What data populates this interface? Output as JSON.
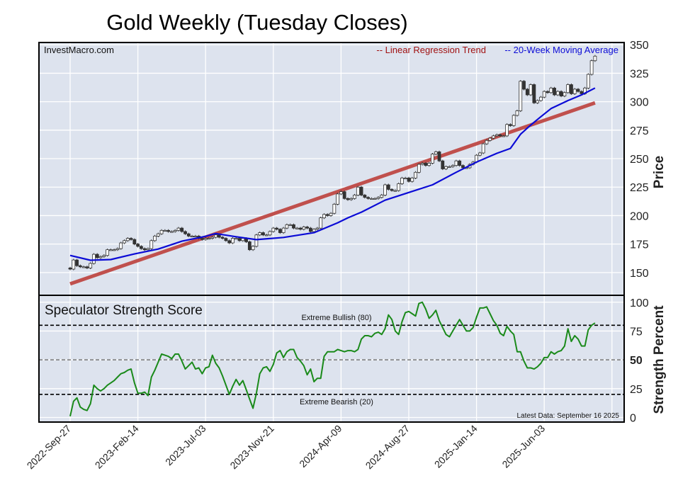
{
  "chart_data": [
    {
      "type": "candlestick+line",
      "title": "Gold Weekly (Tuesday Closes)",
      "source_label": "InvestMacro.com",
      "ylabel": "Price",
      "ylim": [
        130,
        352
      ],
      "yticks": [
        150,
        175,
        200,
        225,
        250,
        275,
        300,
        325,
        350
      ],
      "grid": true,
      "legend_placement": "top-right",
      "first_week": "2022-09-27",
      "xtick_labels": [
        "2022-Sep-27",
        "2023-Feb-14",
        "2023-Jul-03",
        "2023-Nov-21",
        "2024-Apr-09",
        "2024-Aug-27",
        "2025-Jan-14",
        "2025-Jun-03"
      ],
      "closes": [
        153,
        161,
        156,
        155,
        155,
        154,
        158,
        166,
        163,
        164,
        165,
        170,
        170,
        170,
        171,
        176,
        178,
        180,
        179,
        175,
        173,
        171,
        170,
        171,
        178,
        182,
        184,
        187,
        187,
        186,
        186,
        187,
        189,
        186,
        184,
        182,
        182,
        182,
        180,
        179,
        180,
        180,
        181,
        183,
        181,
        180,
        178,
        176,
        180,
        180,
        178,
        180,
        177,
        170,
        173,
        183,
        185,
        183,
        183,
        186,
        189,
        188,
        185,
        189,
        192,
        192,
        189,
        189,
        188,
        190,
        189,
        186,
        188,
        189,
        198,
        201,
        200,
        202,
        210,
        219,
        221,
        215,
        214,
        215,
        218,
        225,
        218,
        216,
        215,
        215,
        215,
        216,
        218,
        227,
        223,
        222,
        222,
        228,
        233,
        233,
        230,
        233,
        238,
        245,
        246,
        244,
        246,
        254,
        256,
        248,
        241,
        243,
        243,
        244,
        248,
        244,
        242,
        242,
        245,
        247,
        253,
        255,
        263,
        266,
        268,
        270,
        271,
        270,
        270,
        280,
        279,
        288,
        292,
        318,
        311,
        306,
        315,
        299,
        301,
        304,
        309,
        308,
        312,
        306,
        309,
        305,
        308,
        315,
        307,
        311,
        309,
        307,
        312,
        324,
        336,
        340
      ],
      "moving_average": {
        "name": "-- 20-Week Moving Average",
        "color": "#0b0bd6",
        "points": [
          {
            "date": "2022-09-27",
            "value": 165
          },
          {
            "date": "2022-11-08",
            "value": 160.8
          },
          {
            "date": "2022-12-20",
            "value": 161.4
          },
          {
            "date": "2023-02-07",
            "value": 166.3
          },
          {
            "date": "2023-03-28",
            "value": 170.6
          },
          {
            "date": "2023-05-16",
            "value": 177.5
          },
          {
            "date": "2023-07-04",
            "value": 181.8
          },
          {
            "date": "2023-07-25",
            "value": 184.2
          },
          {
            "date": "2023-09-05",
            "value": 181.4
          },
          {
            "date": "2023-10-17",
            "value": 178.9
          },
          {
            "date": "2023-12-12",
            "value": 180.8
          },
          {
            "date": "2024-02-13",
            "value": 185
          },
          {
            "date": "2024-04-02",
            "value": 193.7
          },
          {
            "date": "2024-04-23",
            "value": 198
          },
          {
            "date": "2024-05-21",
            "value": 203
          },
          {
            "date": "2024-07-09",
            "value": 213.5
          },
          {
            "date": "2024-08-27",
            "value": 220.3
          },
          {
            "date": "2024-10-15",
            "value": 227
          },
          {
            "date": "2024-12-03",
            "value": 238
          },
          {
            "date": "2025-01-14",
            "value": 247
          },
          {
            "date": "2025-02-25",
            "value": 254.7
          },
          {
            "date": "2025-03-25",
            "value": 259
          },
          {
            "date": "2025-04-15",
            "value": 271.4
          },
          {
            "date": "2025-05-06",
            "value": 279.5
          },
          {
            "date": "2025-05-27",
            "value": 286.8
          },
          {
            "date": "2025-06-17",
            "value": 294
          },
          {
            "date": "2025-07-22",
            "value": 301
          },
          {
            "date": "2025-08-19",
            "value": 306
          },
          {
            "date": "2025-09-16",
            "value": 312
          }
        ]
      },
      "trend": {
        "name": "-- Linear Regression Trend",
        "color": "#c0504d",
        "legend_color": "#a01010",
        "start": {
          "date": "2022-09-27",
          "value": 140
        },
        "end": {
          "date": "2025-09-16",
          "value": 299
        }
      }
    },
    {
      "type": "line",
      "title": "Speculator Strength Score",
      "ylabel": "Strength Percent",
      "ylim": [
        -4,
        106
      ],
      "yticks": [
        0,
        25,
        50,
        75,
        100
      ],
      "color": "#1a8a1a",
      "first_week": "2022-09-27",
      "values": [
        1,
        14,
        17,
        9,
        7,
        6,
        12,
        28,
        25,
        23,
        25,
        28,
        30,
        32,
        35,
        38,
        39,
        41,
        42,
        30,
        21,
        21,
        22,
        19,
        35,
        41,
        48,
        55,
        54,
        53,
        51,
        55,
        55,
        49,
        42,
        45,
        48,
        42,
        43,
        38,
        43,
        44,
        54,
        47,
        43,
        36,
        28,
        20,
        27,
        33,
        28,
        32,
        24,
        16,
        8,
        21,
        38,
        43,
        44,
        40,
        46,
        56,
        58,
        52,
        57,
        59,
        59,
        52,
        49,
        45,
        37,
        42,
        31,
        34,
        34,
        53,
        57,
        57,
        57,
        59,
        58,
        57,
        58,
        58,
        57,
        59,
        68,
        71,
        71,
        70,
        73,
        74,
        72,
        77,
        89,
        85,
        75,
        72,
        83,
        91,
        92,
        90,
        88,
        99,
        100,
        94,
        86,
        89,
        93,
        84,
        78,
        72,
        70,
        75,
        80,
        85,
        80,
        75,
        75,
        78,
        87,
        95,
        95,
        96,
        90,
        84,
        80,
        73,
        71,
        79,
        75,
        72,
        57,
        57,
        49,
        43,
        43,
        42,
        44,
        47,
        52,
        52,
        57,
        55,
        57,
        58,
        62,
        77,
        66,
        71,
        68,
        62,
        62,
        76,
        80,
        82
      ],
      "reference_lines": [
        {
          "value": 80,
          "label": "Extreme Bullish (80)"
        },
        {
          "value": 50,
          "label": ""
        },
        {
          "value": 20,
          "label": "Extreme Bearish (20)"
        }
      ],
      "footnote": "Latest Data: September 16 2025"
    }
  ]
}
